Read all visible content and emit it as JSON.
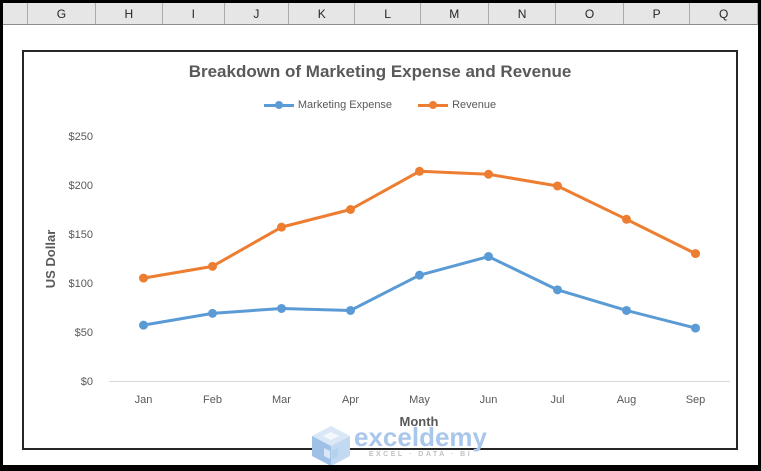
{
  "spreadsheet": {
    "column_headers": [
      "G",
      "H",
      "I",
      "J",
      "K",
      "L",
      "M",
      "N",
      "O",
      "P",
      "Q"
    ]
  },
  "chart": {
    "title": "Breakdown of Marketing Expense and Revenue",
    "legend": [
      {
        "label": "Marketing Expense",
        "color": "#5B9BD5"
      },
      {
        "label": "Revenue",
        "color": "#ED7D31"
      }
    ],
    "colors": {
      "text": "#595959",
      "axis_line": "#D9D9D9",
      "border": "#262626"
    }
  },
  "chart_data": {
    "type": "line",
    "title": "Breakdown of Marketing Expense and Revenue",
    "categories": [
      "Jan",
      "Feb",
      "Mar",
      "Apr",
      "May",
      "Jun",
      "Jul",
      "Aug",
      "Sep"
    ],
    "series": [
      {
        "name": "Marketing Expense",
        "color": "#5B9BD5",
        "values": [
          57,
          69,
          74,
          72,
          108,
          127,
          93,
          72,
          54
        ]
      },
      {
        "name": "Revenue",
        "color": "#ED7D31",
        "values": [
          105,
          117,
          157,
          175,
          214,
          211,
          199,
          165,
          130
        ]
      }
    ],
    "xlabel": "Month",
    "ylabel": "US Dollar",
    "ylim": [
      0,
      250
    ],
    "y_tick_step": 50,
    "y_tick_prefix": "$",
    "grid": false,
    "legend_position": "top"
  },
  "watermark": {
    "brand": "exceldemy",
    "tagline": "EXCEL · DATA · BI"
  }
}
